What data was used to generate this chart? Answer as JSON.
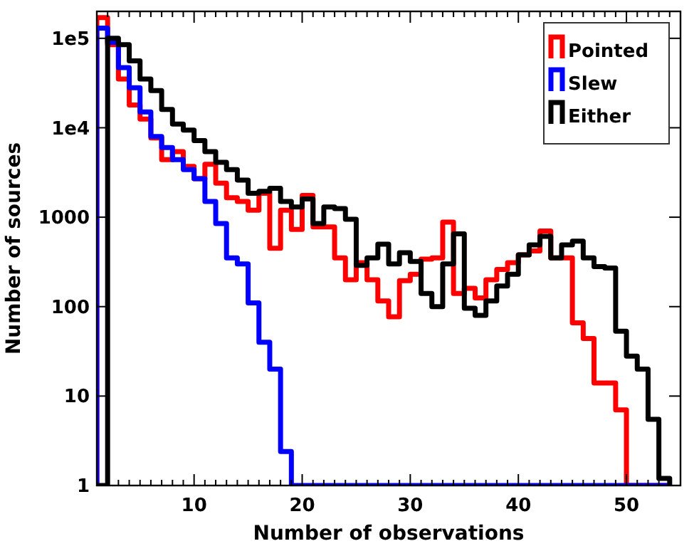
{
  "chart_data": {
    "type": "histogram",
    "xlabel": "Number of observations",
    "ylabel": "Number of sources",
    "log": "y",
    "legend": "top right",
    "grid": false,
    "bins": [
      1,
      2,
      3,
      4,
      5,
      6,
      7,
      8,
      9,
      10,
      11,
      12,
      13,
      14,
      15,
      16,
      17,
      18,
      19,
      20,
      21,
      22,
      23,
      24,
      25,
      26,
      27,
      28,
      29,
      30,
      31,
      32,
      33,
      34,
      35,
      36,
      37,
      38,
      39,
      40,
      41,
      42,
      43,
      44,
      45,
      46,
      47,
      48,
      49,
      50,
      51,
      52,
      53,
      54
    ],
    "xlim": [
      1,
      55
    ],
    "xticks": [
      {
        "value": 2,
        "label": null
      },
      {
        "value": 3,
        "label": null
      },
      {
        "value": 4,
        "label": null
      },
      {
        "value": 5,
        "label": null
      },
      {
        "value": 6,
        "label": null
      },
      {
        "value": 7,
        "label": null
      },
      {
        "value": 8,
        "label": null
      },
      {
        "value": 9,
        "label": null
      },
      10,
      {
        "value": 11,
        "label": null
      },
      {
        "value": 12,
        "label": null
      },
      {
        "value": 13,
        "label": null
      },
      {
        "value": 14,
        "label": null
      },
      {
        "value": 15,
        "label": null
      },
      {
        "value": 16,
        "label": null
      },
      {
        "value": 17,
        "label": null
      },
      {
        "value": 18,
        "label": null
      },
      {
        "value": 19,
        "label": null
      },
      20,
      {
        "value": 21,
        "label": null
      },
      {
        "value": 22,
        "label": null
      },
      {
        "value": 23,
        "label": null
      },
      {
        "value": 24,
        "label": null
      },
      {
        "value": 25,
        "label": null
      },
      {
        "value": 26,
        "label": null
      },
      {
        "value": 27,
        "label": null
      },
      {
        "value": 28,
        "label": null
      },
      {
        "value": 29,
        "label": null
      },
      30,
      {
        "value": 31,
        "label": null
      },
      {
        "value": 32,
        "label": null
      },
      {
        "value": 33,
        "label": null
      },
      {
        "value": 34,
        "label": null
      },
      {
        "value": 35,
        "label": null
      },
      {
        "value": 36,
        "label": null
      },
      {
        "value": 37,
        "label": null
      },
      {
        "value": 38,
        "label": null
      },
      {
        "value": 39,
        "label": null
      },
      40,
      {
        "value": 41,
        "label": null
      },
      {
        "value": 42,
        "label": null
      },
      {
        "value": 43,
        "label": null
      },
      {
        "value": 44,
        "label": null
      },
      {
        "value": 45,
        "label": null
      },
      {
        "value": 46,
        "label": null
      },
      {
        "value": 47,
        "label": null
      },
      {
        "value": 48,
        "label": null
      },
      {
        "value": 49,
        "label": null
      },
      50,
      {
        "value": 51,
        "label": null
      },
      {
        "value": 52,
        "label": null
      },
      {
        "value": 53,
        "label": null
      },
      {
        "value": 54,
        "label": null
      }
    ],
    "ylim": [
      1,
      200000
    ],
    "yticks": [
      1,
      10,
      100,
      1000,
      {
        "value": 10000,
        "label": "1e4"
      },
      {
        "value": 100000,
        "label": "1e5"
      }
    ],
    "series": [
      {
        "name": "Pointed",
        "color": "#ff0000",
        "values": [
          170000,
          85000,
          35000,
          18000,
          12500,
          7700,
          4400,
          5400,
          3700,
          2700,
          3900,
          2400,
          1650,
          1500,
          1200,
          1850,
          450,
          1200,
          730,
          1750,
          780,
          780,
          350,
          200,
          310,
          200,
          116,
          77,
          195,
          230,
          340,
          350,
          880,
          140,
          160,
          125,
          200,
          260,
          310,
          380,
          420,
          700,
          350,
          350,
          66,
          44,
          14,
          14,
          7,
          null,
          null,
          null,
          null
        ]
      },
      {
        "name": "Slew",
        "color": "#0000ff",
        "values": [
          130000,
          90000,
          47000,
          28000,
          15000,
          8000,
          6000,
          4400,
          3400,
          2700,
          1500,
          850,
          350,
          300,
          110,
          40,
          20,
          2.4,
          null,
          null,
          null,
          null,
          null,
          null,
          null,
          null,
          null,
          null,
          null,
          null,
          null,
          null,
          null,
          null,
          null,
          null,
          null,
          null,
          null,
          null,
          null,
          null,
          null,
          null,
          null,
          null,
          null,
          null,
          null,
          null,
          null,
          null,
          null
        ]
      },
      {
        "name": "Either",
        "color": "#000000",
        "values": [
          null,
          100000,
          85000,
          56000,
          35000,
          26000,
          16000,
          11000,
          9400,
          7200,
          5400,
          4100,
          3400,
          2600,
          1850,
          1950,
          2100,
          1500,
          1300,
          1600,
          850,
          1300,
          1250,
          950,
          290,
          350,
          500,
          300,
          400,
          320,
          140,
          100,
          300,
          650,
          96,
          80,
          116,
          170,
          230,
          380,
          490,
          610,
          350,
          490,
          540,
          350,
          280,
          270,
          53,
          28,
          20,
          5.5,
          1.2
        ]
      }
    ]
  }
}
